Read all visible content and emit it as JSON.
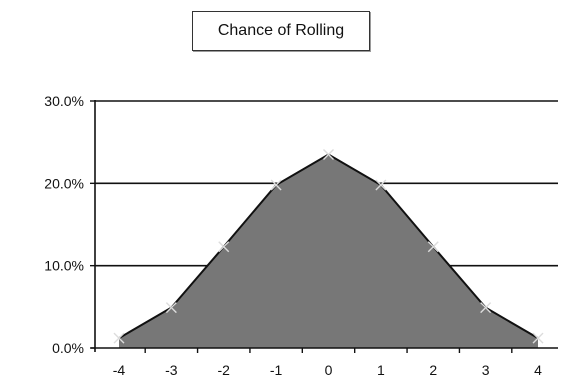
{
  "chart_data": {
    "type": "area",
    "title": "Chance of Rolling",
    "x": [
      -4,
      -3,
      -2,
      -1,
      0,
      1,
      2,
      3,
      4
    ],
    "x_tick_labels": [
      "-4",
      "-3",
      "-2",
      "-1",
      "0",
      "1",
      "2",
      "3",
      "4"
    ],
    "values": [
      1.2,
      4.9,
      12.3,
      19.8,
      23.5,
      19.8,
      12.3,
      4.9,
      1.2
    ],
    "ylim": [
      0,
      30
    ],
    "y_ticks": [
      0,
      10,
      20,
      30
    ],
    "y_tick_labels": [
      "0.0%",
      "10.0%",
      "20.0%",
      "30.0%"
    ],
    "xlabel": "",
    "ylabel": "",
    "grid": "horizontal",
    "legend": "none",
    "colors": {
      "fill": "#777777",
      "line": "#111111",
      "marker": "#dcdcdc",
      "grid": "#111111"
    }
  }
}
